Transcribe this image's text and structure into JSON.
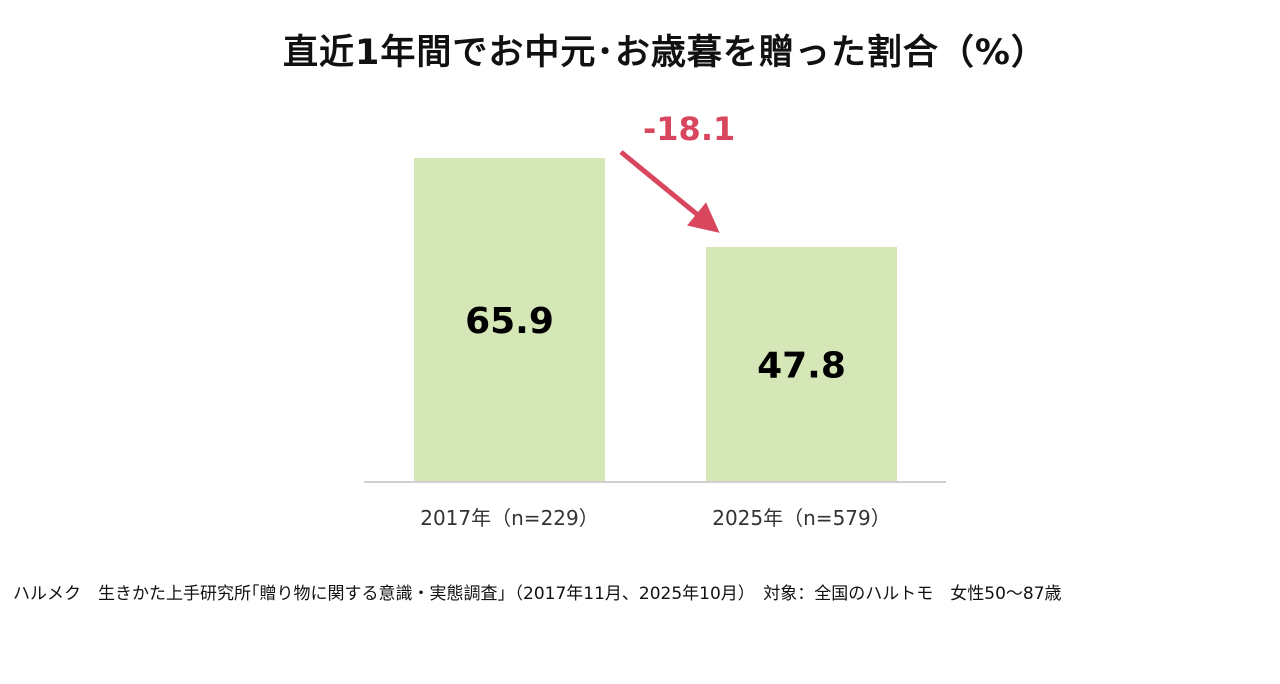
{
  "chart_data": {
    "type": "bar",
    "title": "直近1年間でお中元･お歳暮を贈った割合（%）",
    "categories": [
      "2017年（n=229）",
      "2025年（n=579）"
    ],
    "values": [
      65.9,
      47.8
    ],
    "value_labels": [
      "65.9",
      "47.8"
    ],
    "ylim": [
      0,
      65.9
    ],
    "grid": false,
    "legend": "none",
    "bar_color": "#d5e6b7",
    "annotation": {
      "text": "-18.1",
      "color": "#d9475f",
      "type": "arrow-from-bar-1-to-bar-2"
    }
  },
  "footer": {
    "source": "ハルメク　生きかた上手研究所｢贈り物に関する意識・実態調査｣（2017年11月、2025年10月）　対象：全国のハルトモ　女性50～87歳"
  }
}
